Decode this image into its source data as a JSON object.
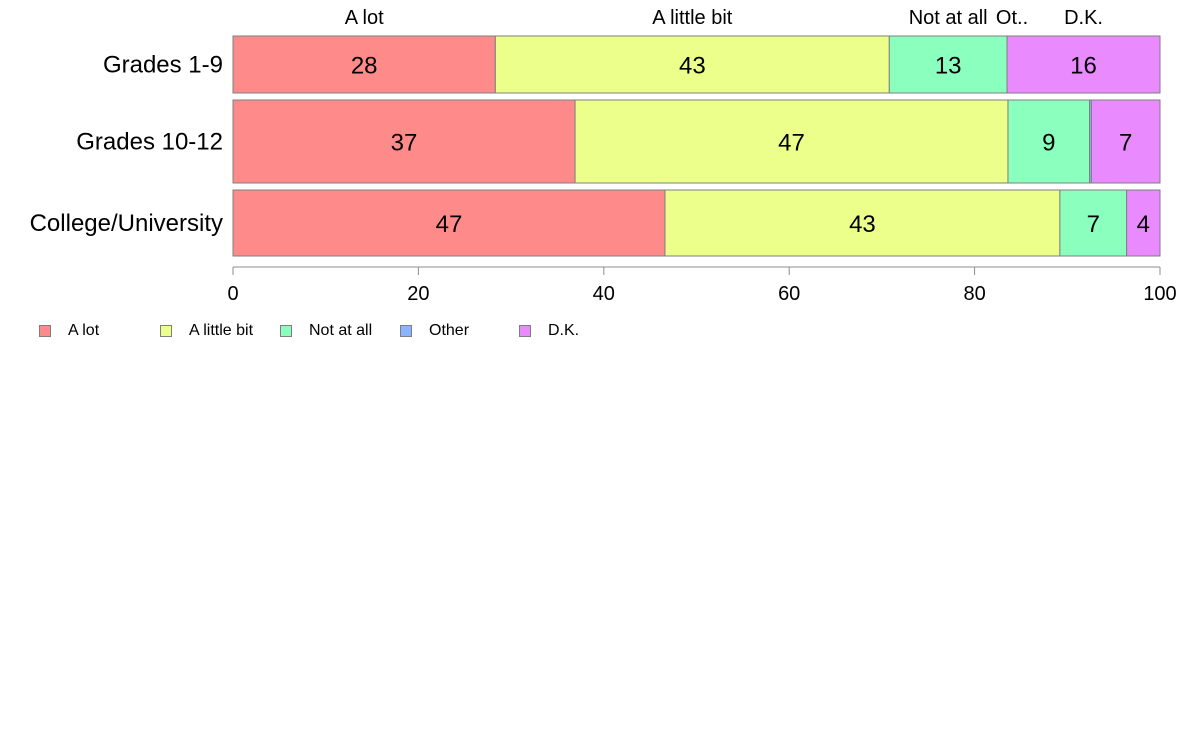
{
  "chart_data": {
    "type": "bar",
    "orientation": "horizontal",
    "stacked": true,
    "categories": [
      "Grades 1-9",
      "Grades 10-12",
      "College/University"
    ],
    "series": [
      {
        "name": "A lot",
        "color": "#ff8a8a",
        "values": [
          28.3,
          36.9,
          46.6
        ],
        "labels": [
          "28",
          "37",
          "47"
        ]
      },
      {
        "name": "A little bit",
        "color": "#ecff8a",
        "values": [
          42.5,
          46.7,
          42.6
        ],
        "labels": [
          "43",
          "47",
          "43"
        ]
      },
      {
        "name": "Not at all",
        "color": "#8affbe",
        "values": [
          12.7,
          8.8,
          7.2
        ],
        "labels": [
          "13",
          "9",
          "7"
        ]
      },
      {
        "name": "Other",
        "color": "#8ab4ff",
        "values": [
          0.0,
          0.2,
          0.0
        ],
        "labels": [
          "",
          "",
          ""
        ]
      },
      {
        "name": "D.K.",
        "color": "#ea8aff",
        "values": [
          16.5,
          7.4,
          3.6
        ],
        "labels": [
          "16",
          "7",
          "4"
        ]
      }
    ],
    "top_labels": [
      "A lot",
      "A little bit",
      "Not at all",
      "Ot..",
      "D.K."
    ],
    "xlim": [
      0,
      100
    ],
    "xticks": [
      0,
      20,
      40,
      60,
      80,
      100
    ],
    "grid": false,
    "legend_position": "bottom-left"
  }
}
